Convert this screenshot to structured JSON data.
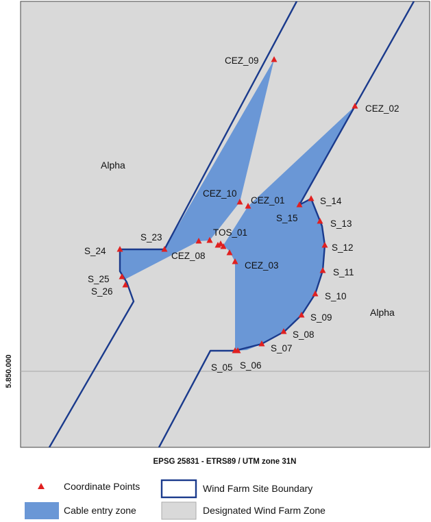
{
  "map": {
    "region_labels": [
      "Alpha",
      "Alpha"
    ],
    "northing_label": "5.850.000",
    "crs_caption": "EPSG 25831 - ETRS89 / UTM zone 31N",
    "points": [
      {
        "name": "CEZ_09"
      },
      {
        "name": "CEZ_02"
      },
      {
        "name": "CEZ_10"
      },
      {
        "name": "CEZ_01"
      },
      {
        "name": "S_14"
      },
      {
        "name": "S_15"
      },
      {
        "name": "S_13"
      },
      {
        "name": "TOS_01"
      },
      {
        "name": "S_23"
      },
      {
        "name": "S_24"
      },
      {
        "name": "S_12"
      },
      {
        "name": "CEZ_08"
      },
      {
        "name": "CEZ_03"
      },
      {
        "name": "S_11"
      },
      {
        "name": "S_25"
      },
      {
        "name": "S_26"
      },
      {
        "name": "S_10"
      },
      {
        "name": "S_09"
      },
      {
        "name": "S_08"
      },
      {
        "name": "S_07"
      },
      {
        "name": "S_05"
      },
      {
        "name": "S_06"
      }
    ],
    "colors": {
      "zone_fill": "#d9d9d9",
      "cable_fill": "#6a97d6",
      "boundary": "#1a3a8c",
      "point": "#e02020"
    }
  },
  "legend": {
    "coordinate_points": "Coordinate Points",
    "site_boundary": "Wind Farm Site Boundary",
    "cable_entry": "Cable entry zone",
    "designated_zone": "Designated Wind Farm Zone",
    "point_icon": "red-triangle-icon"
  }
}
